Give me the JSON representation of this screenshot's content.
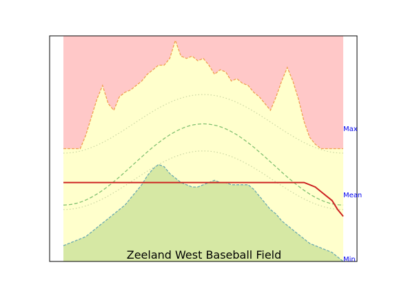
{
  "chart_data": {
    "type": "area",
    "title": "Zeeland West Baseball Field",
    "xlabel": "",
    "ylabel": "",
    "ylim": [
      0,
      100
    ],
    "x_ticks_shown": false,
    "y_ticks_shown": false,
    "grid": false,
    "band_labels": {
      "max": "Max",
      "mean": "Mean",
      "min": "Min"
    },
    "label_color": "#0000ee",
    "colors": {
      "above_max_fill": "#ffc8c8",
      "normal_range_fill": "#ffffcc",
      "below_min_fill": "#d6e8a4",
      "max_line": "#f0a050",
      "min_line": "#6aaab0",
      "mean_line": "#cc2222",
      "center_curve": "#80c070",
      "inner_curves": "#c8d4a0"
    },
    "x": [
      0,
      1,
      2,
      3,
      4,
      5,
      6,
      7,
      8,
      9,
      10,
      11,
      12,
      13,
      14,
      15,
      16,
      17,
      18,
      19,
      20,
      21,
      22,
      23,
      24,
      25,
      26,
      27,
      28,
      29,
      30,
      31,
      32,
      33,
      34,
      35,
      36,
      37,
      38,
      39,
      40,
      41,
      42,
      43,
      44,
      45,
      46,
      47,
      48,
      49,
      50
    ],
    "series": [
      {
        "name": "Max",
        "values": [
          50,
          50,
          50,
          50,
          56,
          64,
          72,
          78,
          70,
          67,
          73,
          75,
          76,
          78,
          80,
          83,
          85,
          87,
          87,
          90,
          98,
          91,
          90,
          91,
          89,
          90,
          87,
          83,
          85,
          84,
          80,
          81,
          79,
          78,
          75,
          73,
          70,
          67,
          73,
          80,
          86,
          80,
          72,
          62,
          55,
          52,
          50,
          50,
          50,
          50,
          50
        ]
      },
      {
        "name": "Mean",
        "values": [
          35,
          35,
          35,
          35,
          35,
          35,
          35,
          35,
          35,
          35,
          35,
          35,
          35,
          35,
          35,
          35,
          35,
          35,
          35,
          35,
          35,
          35,
          35,
          35,
          35,
          35,
          35,
          35,
          35,
          35,
          35,
          35,
          35,
          35,
          35,
          35,
          35,
          35,
          35,
          35,
          35,
          35,
          35,
          35,
          34,
          33,
          31,
          29,
          27,
          23,
          20
        ]
      },
      {
        "name": "Min",
        "values": [
          7,
          8,
          9,
          10,
          11,
          13,
          15,
          17,
          19,
          21,
          23,
          25,
          28,
          31,
          34,
          38,
          41,
          43,
          42,
          39,
          37,
          35,
          34,
          33,
          33,
          34,
          35,
          36,
          35,
          35,
          34,
          34,
          34,
          34,
          32,
          29,
          26,
          23,
          21,
          18,
          16,
          14,
          12,
          10,
          8,
          7,
          6,
          5,
          4,
          2,
          0
        ]
      }
    ]
  }
}
